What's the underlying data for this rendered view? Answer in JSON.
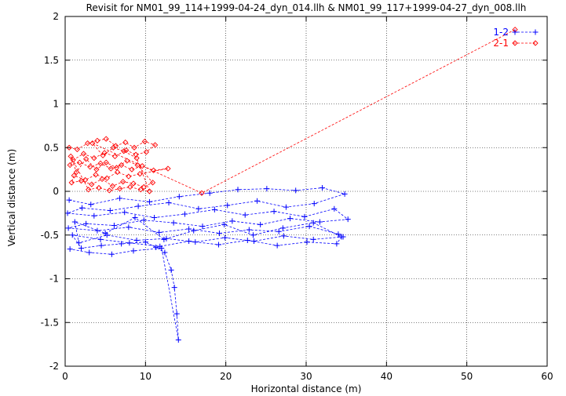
{
  "chart_data": {
    "type": "scatter",
    "title": "Revisit for NM01_99_114+1999-04-24_dyn_014.llh & NM01_99_117+1999-04-27_dyn_008.llh",
    "xlabel": "Horizontal distance (m)",
    "ylabel": "Vertical distance (m)",
    "xlim": [
      0,
      60
    ],
    "ylim": [
      -2,
      2
    ],
    "xticks": [
      0,
      10,
      20,
      30,
      40,
      50,
      60
    ],
    "yticks": [
      -2,
      -1.5,
      -1,
      -0.5,
      0,
      0.5,
      1,
      1.5,
      2
    ],
    "grid": true,
    "legend_position": "top-right",
    "series": [
      {
        "name": "1-2",
        "color": "#0000ff",
        "marker": "plus",
        "line": "dashed",
        "x": [
          0.5,
          3.2,
          6.8,
          10.5,
          14.2,
          18.0,
          21.5,
          25.1,
          28.7,
          32.0,
          34.8,
          31.0,
          27.5,
          23.9,
          20.2,
          16.6,
          12.9,
          9.1,
          5.6,
          2.1,
          0.3,
          3.6,
          7.4,
          11.1,
          14.9,
          18.6,
          22.4,
          26.0,
          29.8,
          33.5,
          35.2,
          31.7,
          28.0,
          24.3,
          20.8,
          17.1,
          13.5,
          9.8,
          6.1,
          2.6,
          0.4,
          4.0,
          7.9,
          11.7,
          15.4,
          19.2,
          22.9,
          26.6,
          30.4,
          34.0,
          34.6,
          30.9,
          27.2,
          23.5,
          19.9,
          16.2,
          12.6,
          8.9,
          5.2,
          1.7,
          1.2,
          5.0,
          8.7,
          12.3,
          16.0,
          19.8,
          23.4,
          27.1,
          30.9,
          34.4,
          33.8,
          30.1,
          26.4,
          22.7,
          19.1,
          15.4,
          11.8,
          8.0,
          4.4,
          0.9,
          2.0,
          4.5,
          7.0,
          10.0,
          11.3,
          12.4,
          13.2,
          13.6,
          13.9,
          14.1,
          12.0,
          8.5,
          5.8,
          3.0,
          0.6
        ],
        "y": [
          -0.1,
          -0.15,
          -0.08,
          -0.12,
          -0.06,
          -0.02,
          0.02,
          0.03,
          0.01,
          0.04,
          -0.03,
          -0.14,
          -0.18,
          -0.11,
          -0.16,
          -0.2,
          -0.13,
          -0.17,
          -0.22,
          -0.19,
          -0.25,
          -0.28,
          -0.24,
          -0.3,
          -0.26,
          -0.21,
          -0.27,
          -0.23,
          -0.29,
          -0.2,
          -0.32,
          -0.35,
          -0.31,
          -0.38,
          -0.34,
          -0.4,
          -0.36,
          -0.33,
          -0.39,
          -0.37,
          -0.42,
          -0.45,
          -0.41,
          -0.47,
          -0.43,
          -0.48,
          -0.44,
          -0.46,
          -0.4,
          -0.49,
          -0.52,
          -0.55,
          -0.51,
          -0.57,
          -0.53,
          -0.58,
          -0.54,
          -0.56,
          -0.5,
          -0.59,
          -0.35,
          -0.48,
          -0.3,
          -0.55,
          -0.45,
          -0.38,
          -0.5,
          -0.42,
          -0.36,
          -0.52,
          -0.6,
          -0.58,
          -0.62,
          -0.56,
          -0.61,
          -0.57,
          -0.63,
          -0.59,
          -0.55,
          -0.5,
          -0.65,
          -0.62,
          -0.6,
          -0.58,
          -0.64,
          -0.7,
          -0.9,
          -1.1,
          -1.4,
          -1.7,
          -0.65,
          -0.68,
          -0.72,
          -0.7,
          -0.66
        ]
      },
      {
        "name": "2-1",
        "color": "#ff0000",
        "marker": "diamond",
        "line": "dashed",
        "x": [
          0.5,
          1.5,
          2.8,
          4.0,
          5.1,
          6.3,
          7.5,
          8.6,
          9.9,
          11.2,
          10.1,
          8.8,
          7.6,
          6.2,
          4.9,
          3.6,
          2.3,
          1.0,
          0.6,
          1.8,
          3.1,
          4.4,
          5.7,
          7.0,
          8.3,
          9.6,
          11.0,
          12.8,
          9.3,
          7.9,
          6.5,
          5.2,
          3.8,
          2.5,
          1.1,
          0.8,
          2.0,
          3.3,
          4.6,
          5.9,
          7.2,
          8.5,
          9.8,
          10.9,
          9.0,
          7.7,
          6.4,
          5.1,
          3.9,
          2.6,
          1.4,
          0.7,
          2.9,
          4.2,
          5.5,
          6.8,
          8.1,
          9.4,
          10.5,
          8.9,
          7.3,
          6.0,
          4.7,
          3.4,
          17.0,
          56.0
        ],
        "y": [
          0.5,
          0.48,
          0.55,
          0.58,
          0.6,
          0.52,
          0.56,
          0.5,
          0.57,
          0.53,
          0.45,
          0.42,
          0.47,
          0.4,
          0.44,
          0.38,
          0.43,
          0.36,
          0.3,
          0.33,
          0.28,
          0.32,
          0.26,
          0.3,
          0.25,
          0.29,
          0.24,
          0.26,
          0.2,
          0.17,
          0.22,
          0.15,
          0.19,
          0.13,
          0.18,
          0.1,
          0.12,
          0.08,
          0.14,
          0.06,
          0.11,
          0.09,
          0.05,
          0.1,
          0.3,
          0.35,
          0.27,
          0.33,
          0.25,
          0.37,
          0.22,
          0.4,
          0.02,
          0.04,
          0.01,
          0.03,
          0.05,
          0.02,
          0.0,
          0.38,
          0.46,
          0.5,
          0.41,
          0.55,
          -0.02,
          1.85
        ]
      }
    ]
  }
}
